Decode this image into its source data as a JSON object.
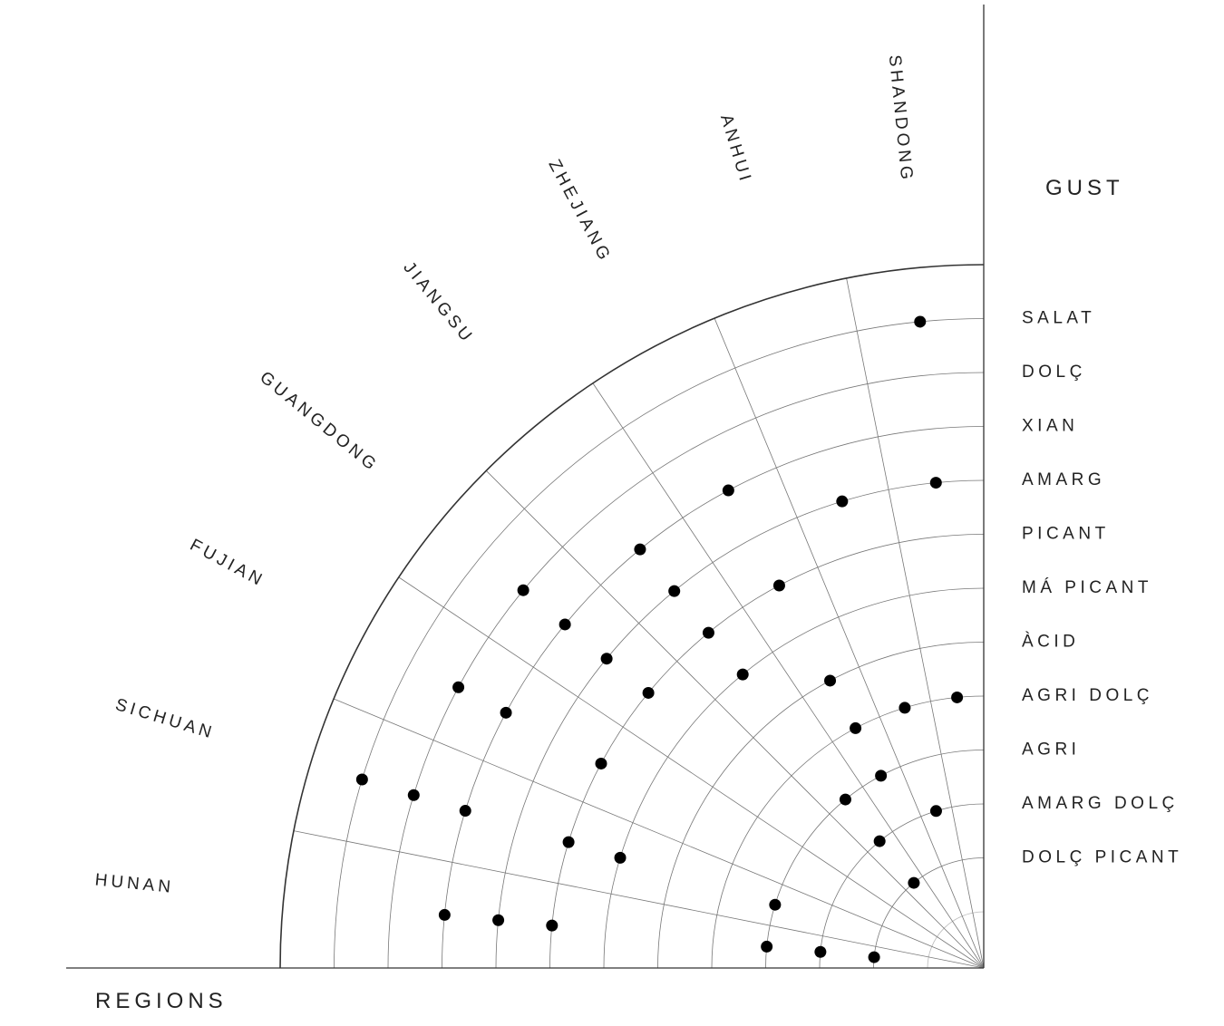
{
  "chart_data": {
    "type": "scatter",
    "layout": "quarter-polar",
    "x_axis_title": "REGIONS",
    "y_axis_title": "GUST",
    "regions": [
      "HUNAN",
      "SICHUAN",
      "FUJIAN",
      "GUANGDONG",
      "JIANGSU",
      "ZHEJIANG",
      "ANHUI",
      "SHANDONG"
    ],
    "flavors": [
      "SALAT",
      "DOLÇ",
      "XIAN",
      "AMARG",
      "PICANT",
      "MÁ PICANT",
      "ÀCID",
      "AGRI DOLÇ",
      "AGRI",
      "AMARG DOLÇ",
      "DOLÇ PICANT"
    ],
    "points": [
      {
        "region": "SHANDONG",
        "flavor": "SALAT"
      },
      {
        "region": "SHANDONG",
        "flavor": "AMARG"
      },
      {
        "region": "SHANDONG",
        "flavor": "AGRI DOLÇ"
      },
      {
        "region": "ANHUI",
        "flavor": "AMARG"
      },
      {
        "region": "ANHUI",
        "flavor": "AGRI DOLÇ"
      },
      {
        "region": "ANHUI",
        "flavor": "AMARG DOLÇ"
      },
      {
        "region": "ZHEJIANG",
        "flavor": "XIAN"
      },
      {
        "region": "ZHEJIANG",
        "flavor": "PICANT"
      },
      {
        "region": "ZHEJIANG",
        "flavor": "ÀCID"
      },
      {
        "region": "ZHEJIANG",
        "flavor": "AGRI"
      },
      {
        "region": "ZHEJIANG",
        "flavor": "AGRI DOLÇ"
      },
      {
        "region": "JIANGSU",
        "flavor": "XIAN"
      },
      {
        "region": "JIANGSU",
        "flavor": "AMARG"
      },
      {
        "region": "JIANGSU",
        "flavor": "PICANT"
      },
      {
        "region": "JIANGSU",
        "flavor": "MÁ PICANT"
      },
      {
        "region": "JIANGSU",
        "flavor": "AGRI"
      },
      {
        "region": "JIANGSU",
        "flavor": "AMARG DOLÇ"
      },
      {
        "region": "JIANGSU",
        "flavor": "DOLÇ PICANT"
      },
      {
        "region": "GUANGDONG",
        "flavor": "DOLÇ"
      },
      {
        "region": "GUANGDONG",
        "flavor": "XIAN"
      },
      {
        "region": "GUANGDONG",
        "flavor": "AMARG"
      },
      {
        "region": "GUANGDONG",
        "flavor": "PICANT"
      },
      {
        "region": "FUJIAN",
        "flavor": "DOLÇ"
      },
      {
        "region": "FUJIAN",
        "flavor": "XIAN"
      },
      {
        "region": "FUJIAN",
        "flavor": "PICANT"
      },
      {
        "region": "SICHUAN",
        "flavor": "SALAT"
      },
      {
        "region": "SICHUAN",
        "flavor": "DOLÇ"
      },
      {
        "region": "SICHUAN",
        "flavor": "XIAN"
      },
      {
        "region": "SICHUAN",
        "flavor": "PICANT"
      },
      {
        "region": "SICHUAN",
        "flavor": "MÁ PICANT"
      },
      {
        "region": "SICHUAN",
        "flavor": "AGRI"
      },
      {
        "region": "HUNAN",
        "flavor": "XIAN"
      },
      {
        "region": "HUNAN",
        "flavor": "AMARG"
      },
      {
        "region": "HUNAN",
        "flavor": "PICANT"
      },
      {
        "region": "HUNAN",
        "flavor": "AGRI"
      },
      {
        "region": "HUNAN",
        "flavor": "AMARG DOLÇ"
      },
      {
        "region": "HUNAN",
        "flavor": "DOLÇ PICANT"
      }
    ],
    "grid": true,
    "colors": {
      "ink": "#000000",
      "frame": "#333333",
      "grid": "#777777",
      "grid_light": "#bbbbbb",
      "text": "#222222"
    }
  }
}
